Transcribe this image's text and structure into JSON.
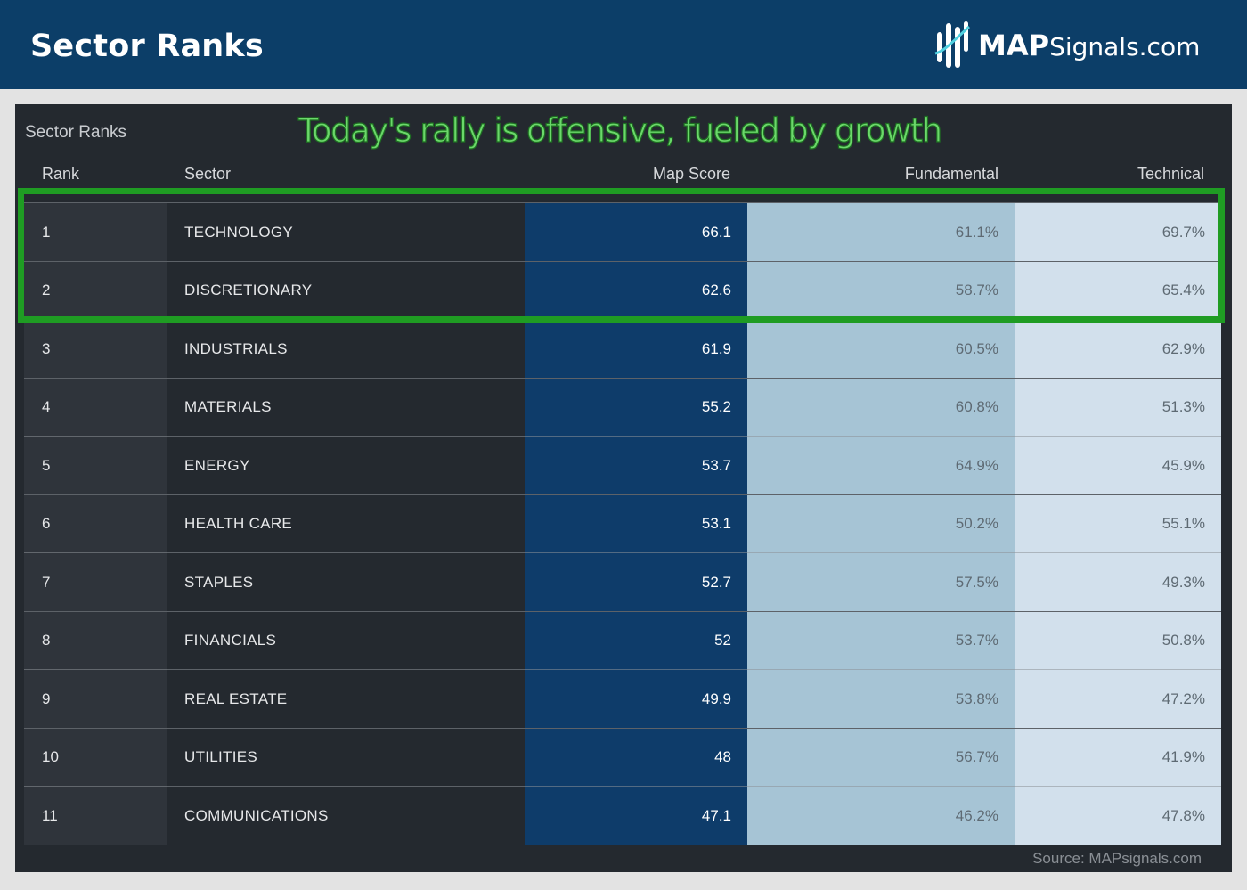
{
  "header": {
    "title": "Sector Ranks"
  },
  "logo": {
    "brand_bold": "MAP",
    "brand_rest": "Signals.com"
  },
  "panel": {
    "label": "Sector Ranks",
    "headline": "Today's rally is offensive, fueled  by growth",
    "columns": {
      "rank": "Rank",
      "sector": "Sector",
      "map_score": "Map Score",
      "fundamental": "Fundamental",
      "technical": "Technical"
    },
    "rows": [
      {
        "rank": "1",
        "sector": "TECHNOLOGY",
        "map_score": "66.1",
        "fundamental": "61.1%",
        "technical": "69.7%"
      },
      {
        "rank": "2",
        "sector": "DISCRETIONARY",
        "map_score": "62.6",
        "fundamental": "58.7%",
        "technical": "65.4%"
      },
      {
        "rank": "3",
        "sector": "INDUSTRIALS",
        "map_score": "61.9",
        "fundamental": "60.5%",
        "technical": "62.9%"
      },
      {
        "rank": "4",
        "sector": "MATERIALS",
        "map_score": "55.2",
        "fundamental": "60.8%",
        "technical": "51.3%"
      },
      {
        "rank": "5",
        "sector": "ENERGY",
        "map_score": "53.7",
        "fundamental": "64.9%",
        "technical": "45.9%"
      },
      {
        "rank": "6",
        "sector": "HEALTH CARE",
        "map_score": "53.1",
        "fundamental": "50.2%",
        "technical": "55.1%"
      },
      {
        "rank": "7",
        "sector": "STAPLES",
        "map_score": "52.7",
        "fundamental": "57.5%",
        "technical": "49.3%"
      },
      {
        "rank": "8",
        "sector": "FINANCIALS",
        "map_score": "52",
        "fundamental": "53.7%",
        "technical": "50.8%"
      },
      {
        "rank": "9",
        "sector": "REAL ESTATE",
        "map_score": "49.9",
        "fundamental": "53.8%",
        "technical": "47.2%"
      },
      {
        "rank": "10",
        "sector": "UTILITIES",
        "map_score": "48",
        "fundamental": "56.7%",
        "technical": "41.9%"
      },
      {
        "rank": "11",
        "sector": "COMMUNICATIONS",
        "map_score": "47.1",
        "fundamental": "46.2%",
        "technical": "47.8%"
      }
    ],
    "source": "Source: MAPsignals.com"
  },
  "colors": {
    "header_bg": "#0c3e68",
    "map_score_bg": "#0e3c6a",
    "fundamental_bg": "#a6c4d5",
    "technical_bg": "#d2e0ec",
    "highlight": "#1f9c23"
  },
  "icons": {
    "logo": "mapsignals-logo-icon"
  }
}
